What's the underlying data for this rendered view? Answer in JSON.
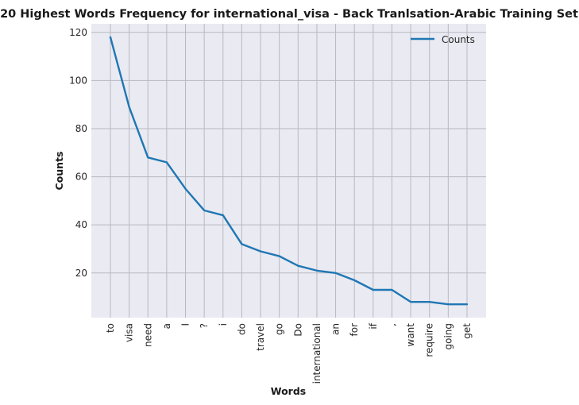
{
  "chart_data": {
    "type": "line",
    "title": "20 Highest Words Frequency for international_visa - Back Tranlsation-Arabic Training Set",
    "xlabel": "Words",
    "ylabel": "Counts",
    "categories": [
      "to",
      "visa",
      "need",
      "a",
      "I",
      "?",
      "i",
      "do",
      "travel",
      "go",
      "Do",
      "international",
      "an",
      "for",
      "if",
      ",",
      "want",
      "require",
      "going",
      "get"
    ],
    "series": [
      {
        "name": "Counts",
        "color": "#1f77b4",
        "values": [
          118,
          89,
          68,
          66,
          55,
          46,
          44,
          32,
          29,
          27,
          23,
          21,
          20,
          17,
          13,
          13,
          8,
          8,
          7,
          7
        ]
      }
    ],
    "yticks": [
      20,
      40,
      60,
      80,
      100,
      120
    ],
    "ylim": [
      1.45,
      123.55
    ],
    "grid": true,
    "legend_position": "top-right",
    "background": "#eaeaf2",
    "grid_color": "#b8b8c0"
  }
}
